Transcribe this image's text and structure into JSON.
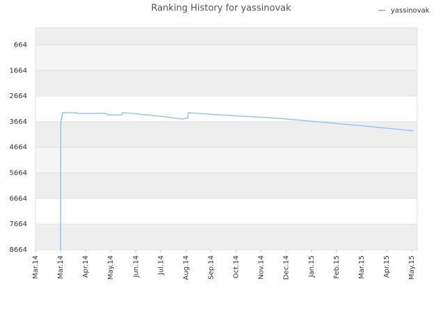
{
  "chart_data": {
    "type": "line",
    "title": "Ranking History for yassinovak",
    "x": [
      1.0,
      1.01,
      1.08,
      1.64,
      1.69,
      2.8,
      2.88,
      3.44,
      3.49,
      4.13,
      4.96,
      5.85,
      6.07,
      6.1,
      6.9,
      9.68,
      12.45,
      15.08
    ],
    "series": [
      {
        "name": "yassinovak",
        "color": "#92c5f0",
        "values": [
          8664,
          3700,
          3314,
          3314,
          3340,
          3340,
          3400,
          3400,
          3310,
          3368,
          3449,
          3557,
          3530,
          3314,
          3370,
          3530,
          3773,
          4020
        ]
      }
    ],
    "xlim": [
      0,
      15.22
    ],
    "xticks": [
      {
        "value": 0,
        "label": "Mar.14"
      },
      {
        "value": 1,
        "label": "Mar.14"
      },
      {
        "value": 2,
        "label": "Apr.14"
      },
      {
        "value": 3,
        "label": "May.14"
      },
      {
        "value": 4,
        "label": "Jun.14"
      },
      {
        "value": 5,
        "label": "Jul.14"
      },
      {
        "value": 6,
        "label": "Aug.14"
      },
      {
        "value": 7,
        "label": "Sep.14"
      },
      {
        "value": 8,
        "label": "Oct.14"
      },
      {
        "value": 9,
        "label": "Nov.14"
      },
      {
        "value": 10,
        "label": "Dec.14"
      },
      {
        "value": 11,
        "label": "Jan.15"
      },
      {
        "value": 12,
        "label": "Feb.15"
      },
      {
        "value": 13,
        "label": "Mar.15"
      },
      {
        "value": 14,
        "label": "Apr.15"
      },
      {
        "value": 15,
        "label": "May.15"
      }
    ],
    "ylim": [
      8664,
      0
    ],
    "yticks": [
      664,
      1664,
      2664,
      3664,
      4664,
      5664,
      6664,
      7664,
      8664
    ],
    "grid": true,
    "legend": "top-right"
  }
}
